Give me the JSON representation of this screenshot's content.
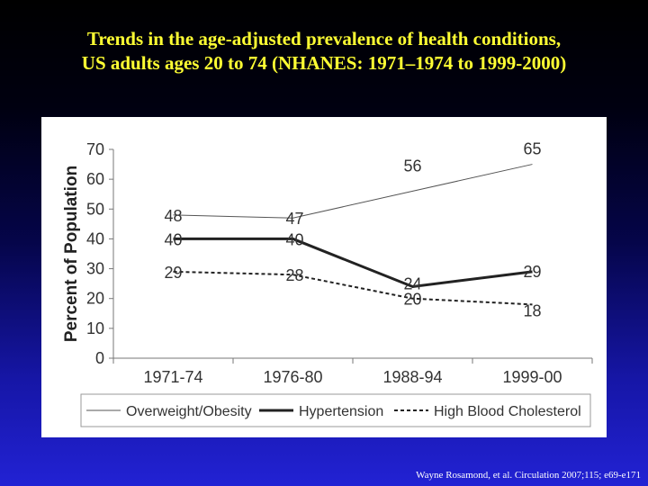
{
  "title_line1": "Trends in the age-adjusted prevalence of health conditions,",
  "title_line2": "US adults ages 20 to 74 (NHANES: 1971–1974 to 1999-2000)",
  "source": "Wayne Rosamond, et al. Circulation  2007;115; e69-e171",
  "chart_data": {
    "type": "line",
    "categories": [
      "1971-74",
      "1976-80",
      "1988-94",
      "1999-00"
    ],
    "ylabel": "Percent of Population",
    "ylim": [
      0,
      70
    ],
    "yticks": [
      0,
      10,
      20,
      30,
      40,
      50,
      60,
      70
    ],
    "grid": false,
    "legend_position": "bottom",
    "series": [
      {
        "name": "Overweight/Obesity",
        "values": [
          48,
          47,
          56,
          65
        ],
        "color": "#555555",
        "style": "thin"
      },
      {
        "name": "Hypertension",
        "values": [
          40,
          40,
          24,
          29
        ],
        "color": "#222222",
        "style": "bold"
      },
      {
        "name": "High Blood Cholesterol",
        "values": [
          29,
          28,
          20,
          18
        ],
        "color": "#222222",
        "style": "dashed"
      }
    ]
  }
}
